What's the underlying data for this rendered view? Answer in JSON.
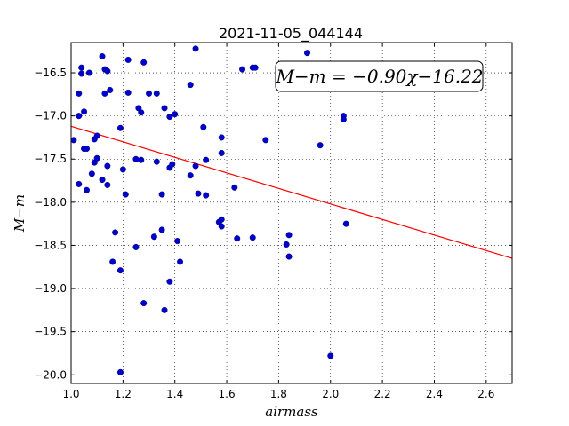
{
  "chart_data": {
    "type": "scatter",
    "title": "2021-11-05_044144",
    "xlabel": "airmass",
    "ylabel": "M−m",
    "xlim": [
      1.0,
      2.7
    ],
    "ylim": [
      -20.1,
      -16.15
    ],
    "y_inverted": false,
    "x_ticks": [
      1.0,
      1.2,
      1.4,
      1.6,
      1.8,
      2.0,
      2.2,
      2.4,
      2.6
    ],
    "x_tick_labels": [
      "1.0",
      "1.2",
      "1.4",
      "1.6",
      "1.8",
      "2.0",
      "2.2",
      "2.4",
      "2.6"
    ],
    "y_ticks": [
      -20.0,
      -19.5,
      -19.0,
      -18.5,
      -18.0,
      -17.5,
      -17.0,
      -16.5
    ],
    "y_tick_labels": [
      "−20.0",
      "−19.5",
      "−19.0",
      "−18.5",
      "−18.0",
      "−17.5",
      "−17.0",
      "−16.5"
    ],
    "grid": true,
    "annotation": "M−m = −0.90χ−16.22",
    "marker_color": "#0000cc",
    "fit_color": "#ff0000",
    "fit": {
      "slope": -0.9,
      "intercept": -16.22,
      "x_range": [
        1.0,
        2.7
      ]
    },
    "points": [
      [
        1.01,
        -17.28
      ],
      [
        1.03,
        -17.0
      ],
      [
        1.03,
        -16.74
      ],
      [
        1.03,
        -17.79
      ],
      [
        1.04,
        -16.44
      ],
      [
        1.04,
        -16.51
      ],
      [
        1.05,
        -17.38
      ],
      [
        1.05,
        -16.95
      ],
      [
        1.06,
        -17.86
      ],
      [
        1.06,
        -17.38
      ],
      [
        1.07,
        -16.5
      ],
      [
        1.08,
        -17.67
      ],
      [
        1.09,
        -17.54
      ],
      [
        1.09,
        -17.27
      ],
      [
        1.1,
        -17.49
      ],
      [
        1.1,
        -17.23
      ],
      [
        1.12,
        -17.74
      ],
      [
        1.12,
        -16.31
      ],
      [
        1.13,
        -16.74
      ],
      [
        1.13,
        -16.46
      ],
      [
        1.14,
        -16.48
      ],
      [
        1.14,
        -17.58
      ],
      [
        1.14,
        -17.8
      ],
      [
        1.15,
        -16.7
      ],
      [
        1.16,
        -18.69
      ],
      [
        1.17,
        -18.35
      ],
      [
        1.19,
        -18.79
      ],
      [
        1.19,
        -17.14
      ],
      [
        1.19,
        -19.97
      ],
      [
        1.2,
        -17.62
      ],
      [
        1.21,
        -17.91
      ],
      [
        1.22,
        -16.35
      ],
      [
        1.22,
        -16.73
      ],
      [
        1.25,
        -17.5
      ],
      [
        1.25,
        -18.52
      ],
      [
        1.26,
        -16.91
      ],
      [
        1.27,
        -16.96
      ],
      [
        1.27,
        -17.51
      ],
      [
        1.28,
        -16.38
      ],
      [
        1.28,
        -19.17
      ],
      [
        1.3,
        -16.74
      ],
      [
        1.32,
        -18.4
      ],
      [
        1.33,
        -16.74
      ],
      [
        1.33,
        -17.53
      ],
      [
        1.35,
        -17.91
      ],
      [
        1.35,
        -18.32
      ],
      [
        1.36,
        -16.91
      ],
      [
        1.36,
        -19.25
      ],
      [
        1.38,
        -17.01
      ],
      [
        1.38,
        -17.6
      ],
      [
        1.38,
        -18.92
      ],
      [
        1.39,
        -17.56
      ],
      [
        1.4,
        -16.98
      ],
      [
        1.41,
        -18.45
      ],
      [
        1.42,
        -18.69
      ],
      [
        1.46,
        -17.69
      ],
      [
        1.46,
        -16.64
      ],
      [
        1.48,
        -16.22
      ],
      [
        1.48,
        -17.58
      ],
      [
        1.49,
        -17.9
      ],
      [
        1.51,
        -17.13
      ],
      [
        1.52,
        -17.51
      ],
      [
        1.52,
        -17.92
      ],
      [
        1.57,
        -18.23
      ],
      [
        1.58,
        -18.28
      ],
      [
        1.58,
        -18.2
      ],
      [
        1.58,
        -17.25
      ],
      [
        1.58,
        -17.43
      ],
      [
        1.63,
        -17.83
      ],
      [
        1.64,
        -18.42
      ],
      [
        1.66,
        -16.46
      ],
      [
        1.7,
        -18.41
      ],
      [
        1.7,
        -16.44
      ],
      [
        1.71,
        -16.44
      ],
      [
        1.75,
        -17.28
      ],
      [
        1.83,
        -18.49
      ],
      [
        1.84,
        -18.38
      ],
      [
        1.84,
        -18.63
      ],
      [
        1.91,
        -16.27
      ],
      [
        1.96,
        -17.34
      ],
      [
        2.0,
        -19.78
      ],
      [
        2.05,
        -17.0
      ],
      [
        2.05,
        -17.04
      ],
      [
        2.06,
        -18.25
      ]
    ]
  }
}
